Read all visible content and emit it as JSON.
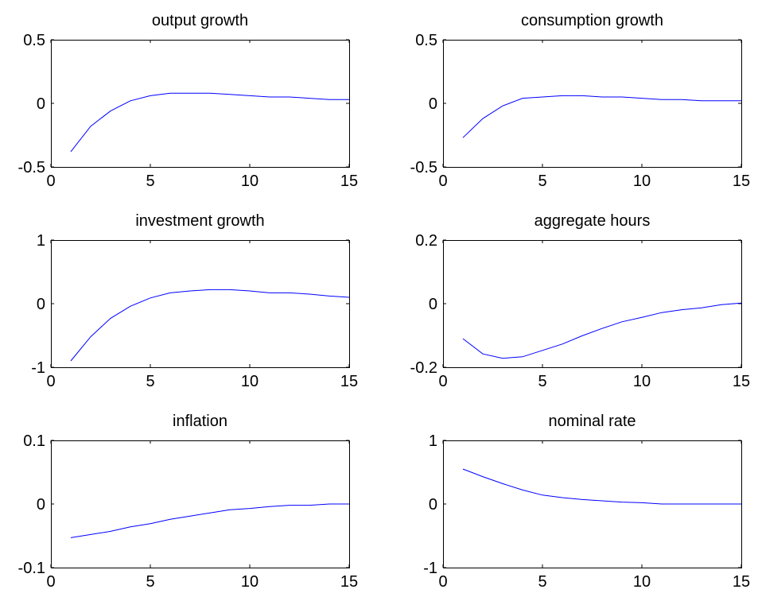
{
  "figure": {
    "background": "#ffffff",
    "line_color": "#0000ff",
    "axis_color": "#000000"
  },
  "chart_data": [
    {
      "type": "line",
      "title": "output growth",
      "x": [
        1,
        2,
        3,
        4,
        5,
        6,
        7,
        8,
        9,
        10,
        11,
        12,
        13,
        14,
        15
      ],
      "series": [
        {
          "values": [
            -0.38,
            -0.18,
            -0.06,
            0.02,
            0.06,
            0.08,
            0.08,
            0.08,
            0.07,
            0.06,
            0.05,
            0.05,
            0.04,
            0.03,
            0.03
          ]
        }
      ],
      "xlim": [
        0,
        15
      ],
      "ylim": [
        -0.5,
        0.5
      ],
      "xticks": [
        "0",
        "5",
        "10",
        "15"
      ],
      "yticks": [
        "-0.5",
        "0",
        "0.5"
      ]
    },
    {
      "type": "line",
      "title": "consumption growth",
      "x": [
        1,
        2,
        3,
        4,
        5,
        6,
        7,
        8,
        9,
        10,
        11,
        12,
        13,
        14,
        15
      ],
      "series": [
        {
          "values": [
            -0.27,
            -0.12,
            -0.02,
            0.04,
            0.05,
            0.06,
            0.06,
            0.05,
            0.05,
            0.04,
            0.03,
            0.03,
            0.02,
            0.02,
            0.02
          ]
        }
      ],
      "xlim": [
        0,
        15
      ],
      "ylim": [
        -0.5,
        0.5
      ],
      "xticks": [
        "0",
        "5",
        "10",
        "15"
      ],
      "yticks": [
        "-0.5",
        "0",
        "0.5"
      ]
    },
    {
      "type": "line",
      "title": "investment growth",
      "x": [
        1,
        2,
        3,
        4,
        5,
        6,
        7,
        8,
        9,
        10,
        11,
        12,
        13,
        14,
        15
      ],
      "series": [
        {
          "values": [
            -0.9,
            -0.52,
            -0.23,
            -0.04,
            0.09,
            0.17,
            0.2,
            0.22,
            0.22,
            0.2,
            0.17,
            0.17,
            0.15,
            0.12,
            0.1
          ]
        }
      ],
      "xlim": [
        0,
        15
      ],
      "ylim": [
        -1,
        1
      ],
      "xticks": [
        "0",
        "5",
        "10",
        "15"
      ],
      "yticks": [
        "-1",
        "0",
        "1"
      ]
    },
    {
      "type": "line",
      "title": "aggregate hours",
      "x": [
        1,
        2,
        3,
        4,
        5,
        6,
        7,
        8,
        9,
        10,
        11,
        12,
        13,
        14,
        15
      ],
      "series": [
        {
          "values": [
            -0.11,
            -0.158,
            -0.172,
            -0.167,
            -0.147,
            -0.127,
            -0.101,
            -0.078,
            -0.057,
            -0.043,
            -0.028,
            -0.019,
            -0.013,
            -0.003,
            0.002
          ]
        }
      ],
      "xlim": [
        0,
        15
      ],
      "ylim": [
        -0.2,
        0.2
      ],
      "xticks": [
        "0",
        "5",
        "10",
        "15"
      ],
      "yticks": [
        "-0.2",
        "0",
        "0.2"
      ]
    },
    {
      "type": "line",
      "title": "inflation",
      "x": [
        1,
        2,
        3,
        4,
        5,
        6,
        7,
        8,
        9,
        10,
        11,
        12,
        13,
        14,
        15
      ],
      "series": [
        {
          "values": [
            -0.053,
            -0.048,
            -0.043,
            -0.036,
            -0.031,
            -0.024,
            -0.019,
            -0.014,
            -0.009,
            -0.007,
            -0.004,
            -0.002,
            -0.002,
            0.0,
            0.0
          ]
        }
      ],
      "xlim": [
        0,
        15
      ],
      "ylim": [
        -0.1,
        0.1
      ],
      "xticks": [
        "0",
        "5",
        "10",
        "15"
      ],
      "yticks": [
        "-0.1",
        "0",
        "0.1"
      ]
    },
    {
      "type": "line",
      "title": "nominal rate",
      "x": [
        1,
        2,
        3,
        4,
        5,
        6,
        7,
        8,
        9,
        10,
        11,
        12,
        13,
        14,
        15
      ],
      "series": [
        {
          "values": [
            0.55,
            0.43,
            0.32,
            0.22,
            0.14,
            0.1,
            0.07,
            0.05,
            0.03,
            0.02,
            0.0,
            0.0,
            0.0,
            0.0,
            0.0
          ]
        }
      ],
      "xlim": [
        0,
        15
      ],
      "ylim": [
        -1,
        1
      ],
      "xticks": [
        "0",
        "5",
        "10",
        "15"
      ],
      "yticks": [
        "-1",
        "0",
        "1"
      ]
    }
  ]
}
